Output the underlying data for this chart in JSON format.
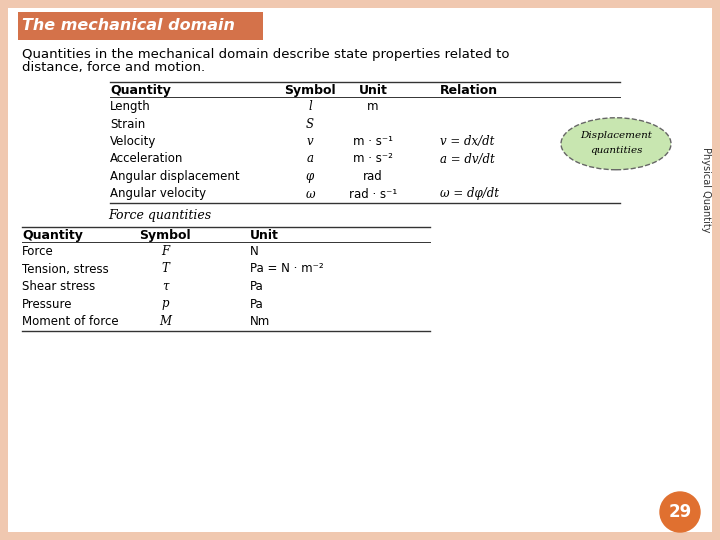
{
  "title": "The mechanical domain",
  "subtitle_line1": "Quantities in the mechanical domain describe state properties related to",
  "subtitle_line2": "distance, force and motion.",
  "bg_color": "#f0c8b0",
  "title_bg": "#d4724a",
  "slide_bg": "#ffffff",
  "page_number": "29",
  "page_num_color": "#e07030",
  "displacement_ellipse_color": "#c8e6b0",
  "physical_quantity_text": "Physical Quantity",
  "table1_header": [
    "Quantity",
    "Symbol",
    "Unit",
    "Relation"
  ],
  "table1_rows": [
    [
      "Length",
      "l",
      "m",
      ""
    ],
    [
      "Strain",
      "S",
      "",
      ""
    ],
    [
      "Velocity",
      "v",
      "m · s⁻¹",
      "v = dx/dt"
    ],
    [
      "Acceleration",
      "a",
      "m · s⁻²",
      "a = dv/dt"
    ],
    [
      "Angular displacement",
      "φ",
      "rad",
      ""
    ],
    [
      "Angular velocity",
      "ω",
      "rad · s⁻¹",
      "ω = dφ/dt"
    ]
  ],
  "force_label": "Force quantities",
  "table2_header": [
    "Quantity",
    "Symbol",
    "Unit"
  ],
  "table2_rows": [
    [
      "Force",
      "F",
      "N"
    ],
    [
      "Tension, stress",
      "T",
      "Pa = N · m⁻²"
    ],
    [
      "Shear stress",
      "τ",
      "Pa"
    ],
    [
      "Pressure",
      "p",
      "Pa"
    ],
    [
      "Moment of force",
      "M",
      "Nm"
    ]
  ]
}
